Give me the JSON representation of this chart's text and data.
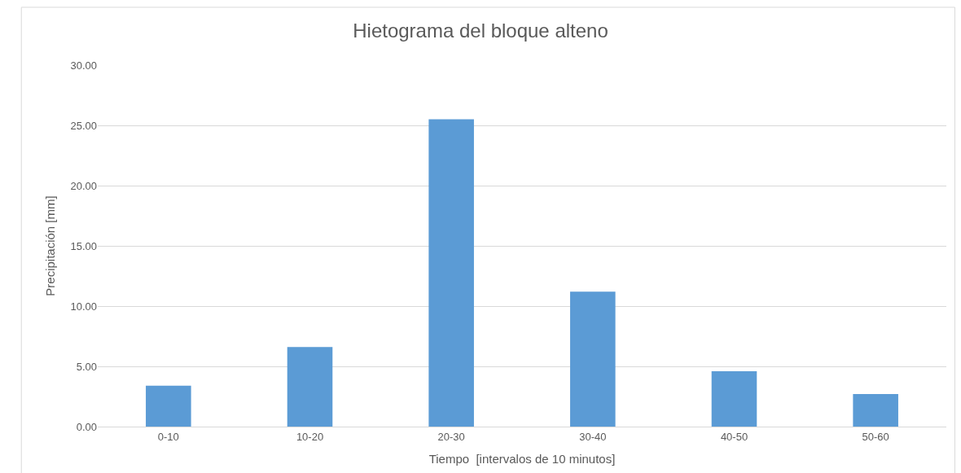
{
  "chart_data": {
    "type": "bar",
    "title": "Hietograma del bloque alteno",
    "xlabel": "Tiempo  [intervalos de 10 minutos]",
    "ylabel": "Precipitación [mm]",
    "categories": [
      "0-10",
      "10-20",
      "20-30",
      "30-40",
      "40-50",
      "50-60"
    ],
    "values": [
      3.4,
      6.6,
      25.5,
      11.2,
      4.6,
      2.7
    ],
    "color": "#5b9bd5",
    "ylim": [
      0,
      30
    ],
    "yticks": [
      {
        "value": 0,
        "label": "0.00"
      },
      {
        "value": 5,
        "label": "5.00"
      },
      {
        "value": 10,
        "label": "10.00"
      },
      {
        "value": 15,
        "label": "15.00"
      },
      {
        "value": 20,
        "label": "20.00"
      },
      {
        "value": 25,
        "label": "25.00"
      },
      {
        "value": 30,
        "label": "30.00"
      }
    ],
    "grid": "y",
    "legend": false
  }
}
